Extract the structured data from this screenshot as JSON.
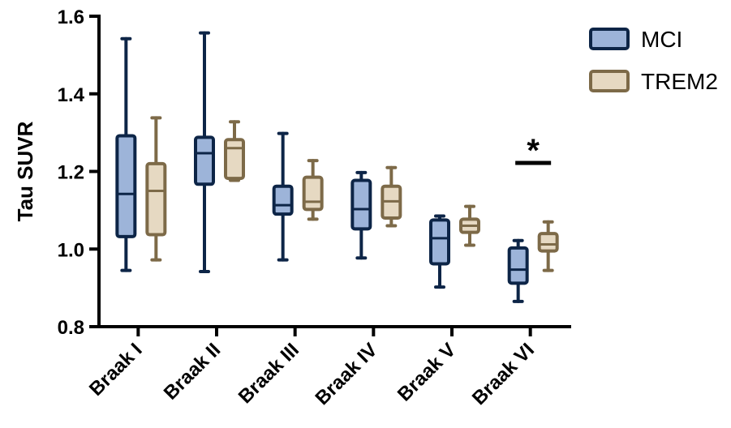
{
  "chart_data": {
    "type": "box",
    "ylabel": "Tau SUVR",
    "ylim": [
      0.8,
      1.6
    ],
    "yticks": [
      "0.8",
      "1.0",
      "1.2",
      "1.4",
      "1.6"
    ],
    "categories": [
      "Braak I",
      "Braak II",
      "Braak III",
      "Braak IV",
      "Braak V",
      "Braak VI"
    ],
    "legend_position": "top-right",
    "series": [
      {
        "name": "MCI",
        "edge_color": "#0d2547",
        "fill_color": "#9db4d9",
        "boxes": [
          {
            "min": 0.945,
            "q1": 1.032,
            "median": 1.142,
            "q3": 1.292,
            "max": 1.542
          },
          {
            "min": 0.942,
            "q1": 1.167,
            "median": 1.247,
            "q3": 1.288,
            "max": 1.557
          },
          {
            "min": 0.972,
            "q1": 1.09,
            "median": 1.113,
            "q3": 1.162,
            "max": 1.298
          },
          {
            "min": 0.977,
            "q1": 1.052,
            "median": 1.103,
            "q3": 1.177,
            "max": 1.197
          },
          {
            "min": 0.902,
            "q1": 0.962,
            "median": 1.028,
            "q3": 1.075,
            "max": 1.085
          },
          {
            "min": 0.865,
            "q1": 0.912,
            "median": 0.947,
            "q3": 1.003,
            "max": 1.022
          }
        ]
      },
      {
        "name": "TREM2",
        "edge_color": "#7d6a48",
        "fill_color": "#e6d9c2",
        "boxes": [
          {
            "min": 0.972,
            "q1": 1.037,
            "median": 1.15,
            "q3": 1.22,
            "max": 1.338
          },
          {
            "min": 1.177,
            "q1": 1.182,
            "median": 1.26,
            "q3": 1.282,
            "max": 1.328
          },
          {
            "min": 1.077,
            "q1": 1.102,
            "median": 1.122,
            "q3": 1.185,
            "max": 1.228
          },
          {
            "min": 1.06,
            "q1": 1.08,
            "median": 1.123,
            "q3": 1.162,
            "max": 1.21
          },
          {
            "min": 1.01,
            "q1": 1.043,
            "median": 1.06,
            "q3": 1.077,
            "max": 1.11
          },
          {
            "min": 0.945,
            "q1": 0.995,
            "median": 1.012,
            "q3": 1.04,
            "max": 1.07
          }
        ]
      }
    ],
    "annotations": [
      {
        "text": "*",
        "category_index": 5,
        "y": 1.222
      }
    ]
  }
}
